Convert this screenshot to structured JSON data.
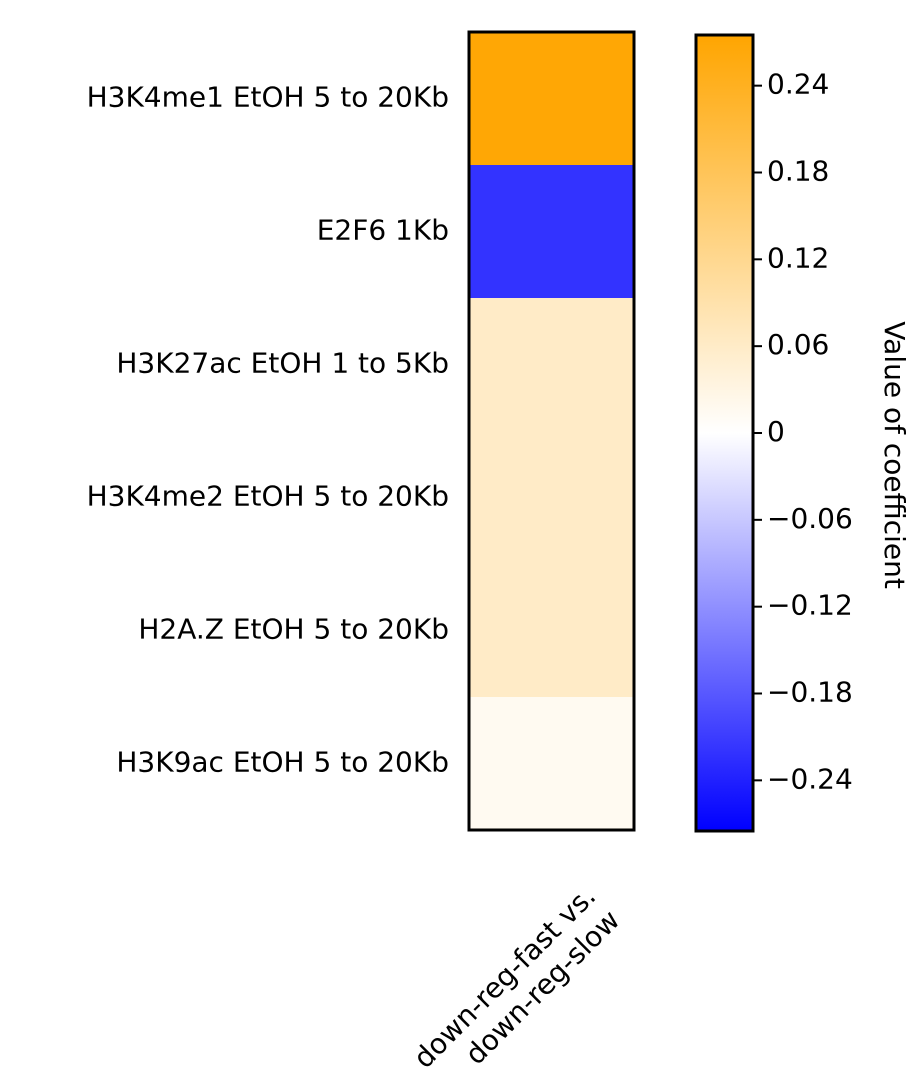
{
  "chart_data": {
    "type": "heatmap",
    "title": "",
    "xlabel": "",
    "ylabel": "",
    "columns": [
      "down-reg-fast vs.\ndown-reg-slow"
    ],
    "column_label_lines": [
      "down-reg-fast vs.",
      "down-reg-slow"
    ],
    "rows": [
      "H3K4me1 EtOH 5 to 20Kb",
      "E2F6 1Kb",
      "H3K27ac EtOH 1 to 5Kb",
      "H3K4me2 EtOH 5 to 20Kb",
      "H2A.Z EtOH 5 to 20Kb",
      "H3K9ac EtOH 5 to 20Kb"
    ],
    "values": [
      [
        0.27
      ],
      [
        -0.22
      ],
      [
        0.06
      ],
      [
        0.06
      ],
      [
        0.06
      ],
      [
        0.015
      ]
    ],
    "colorbar": {
      "label": "Value of coefficient",
      "range": [
        -0.275,
        0.275
      ],
      "ticks": [
        0.24,
        0.18,
        0.12,
        0.06,
        0,
        -0.06,
        -0.12,
        -0.18,
        -0.24
      ],
      "tick_labels": [
        "0.24",
        "0.18",
        "0.12",
        "0.06",
        "0",
        "−0.06",
        "−0.12",
        "−0.18",
        "−0.24"
      ],
      "colormap": {
        "low": "#0000ff",
        "mid": "#ffffff",
        "high": "#ffa500"
      }
    }
  }
}
